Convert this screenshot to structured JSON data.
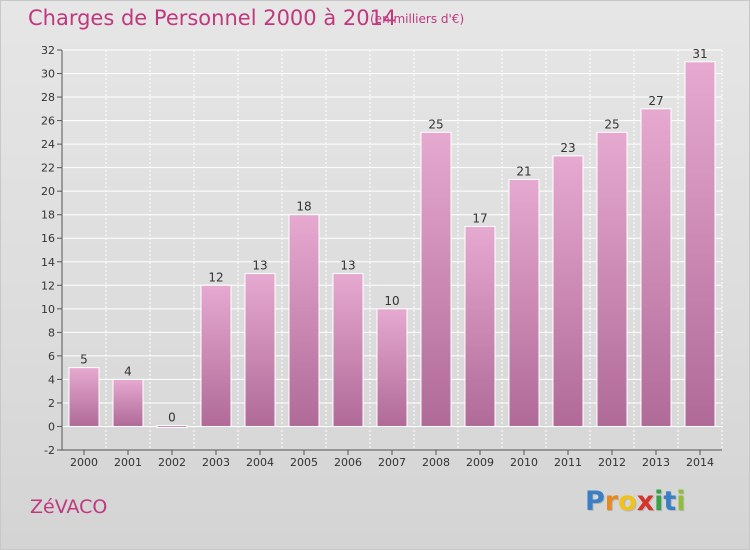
{
  "header": {
    "title": "Charges de Personnel 2000 à 2014",
    "subtitle": "(en milliers d'€)"
  },
  "footer": {
    "commune": "ZéVACO",
    "logo_letters": [
      "P",
      "r",
      "o",
      "x",
      "i",
      "t",
      "i"
    ]
  },
  "colors": {
    "title": "#c0387e",
    "bar_top": "#e6a9d0",
    "bar_bottom": "#b06a98",
    "logo": [
      "#3a7fc4",
      "#e58a1f",
      "#f0c21b",
      "#d8332a",
      "#3aa14a",
      "#3a7fc4",
      "#8fbf3a"
    ]
  },
  "chart_data": {
    "type": "bar",
    "categories": [
      "2000",
      "2001",
      "2002",
      "2003",
      "2004",
      "2005",
      "2006",
      "2007",
      "2008",
      "2009",
      "2010",
      "2011",
      "2012",
      "2013",
      "2014"
    ],
    "values": [
      5,
      4,
      0,
      12,
      13,
      18,
      13,
      10,
      25,
      17,
      21,
      23,
      25,
      27,
      31
    ],
    "title": "Charges de Personnel 2000 à 2014",
    "xlabel": "",
    "ylabel": "",
    "ylim": [
      -2,
      32
    ],
    "yticks": [
      -2,
      0,
      2,
      4,
      6,
      8,
      10,
      12,
      14,
      16,
      18,
      20,
      22,
      24,
      26,
      28,
      30,
      32
    ],
    "grid": true
  }
}
